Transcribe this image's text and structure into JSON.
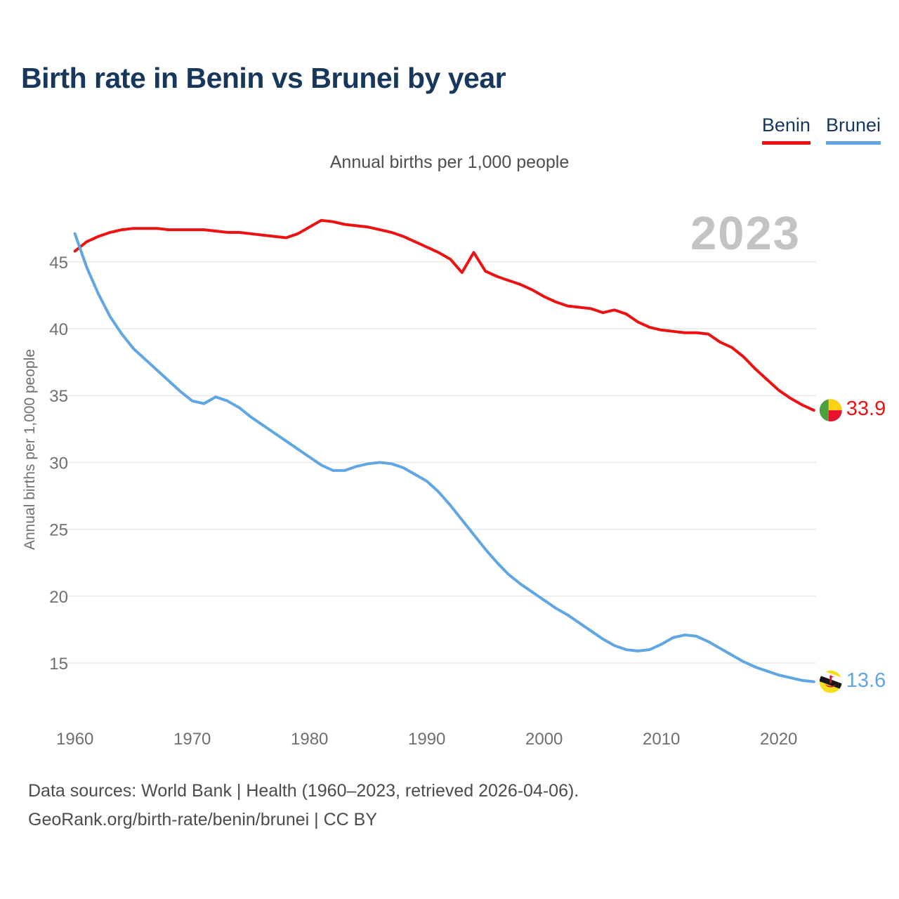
{
  "page": {
    "title": "Birth rate in Benin vs Brunei by year"
  },
  "footer": {
    "line1": "Data sources: World Bank | Health (1960–2023, retrieved 2026-04-06).",
    "line2": "GeoRank.org/birth-rate/benin/brunei | CC BY"
  },
  "chart_data": {
    "type": "line",
    "title": "Birth rate in Benin vs Brunei by year",
    "subtitle": "Annual births per 1,000 people",
    "ylabel": "Annual births per 1,000 people",
    "xlabel": "",
    "watermark": "2023",
    "grid": "horizontal",
    "legend_position": "top-right",
    "x_ticks": [
      1960,
      1970,
      1980,
      1990,
      2000,
      2010,
      2020
    ],
    "y_ticks": [
      45,
      40,
      35,
      30,
      25,
      20,
      15
    ],
    "xlim": [
      1959,
      2024
    ],
    "ylim": [
      10.5,
      49
    ],
    "x": [
      1960,
      1961,
      1962,
      1963,
      1964,
      1965,
      1966,
      1967,
      1968,
      1969,
      1970,
      1971,
      1972,
      1973,
      1974,
      1975,
      1976,
      1977,
      1978,
      1979,
      1980,
      1981,
      1982,
      1983,
      1984,
      1985,
      1986,
      1987,
      1988,
      1989,
      1990,
      1991,
      1992,
      1993,
      1994,
      1995,
      1996,
      1997,
      1998,
      1999,
      2000,
      2001,
      2002,
      2003,
      2004,
      2005,
      2006,
      2007,
      2008,
      2009,
      2010,
      2011,
      2012,
      2013,
      2014,
      2015,
      2016,
      2017,
      2018,
      2019,
      2020,
      2021,
      2022,
      2023
    ],
    "series": [
      {
        "name": "Benin",
        "color": "#ee1111",
        "end_label": "33.9",
        "flag": "benin",
        "values": [
          45.8,
          46.5,
          46.9,
          47.2,
          47.4,
          47.5,
          47.5,
          47.5,
          47.4,
          47.4,
          47.4,
          47.4,
          47.3,
          47.2,
          47.2,
          47.1,
          47.0,
          46.9,
          46.8,
          47.1,
          47.6,
          48.1,
          48.0,
          47.8,
          47.7,
          47.6,
          47.4,
          47.2,
          46.9,
          46.5,
          46.1,
          45.7,
          45.2,
          44.2,
          45.7,
          44.3,
          43.9,
          43.6,
          43.3,
          42.9,
          42.4,
          42.0,
          41.7,
          41.6,
          41.5,
          41.2,
          41.4,
          41.1,
          40.5,
          40.1,
          39.9,
          39.8,
          39.7,
          39.7,
          39.6,
          39.0,
          38.6,
          37.9,
          37.0,
          36.2,
          35.4,
          34.8,
          34.3,
          33.9
        ]
      },
      {
        "name": "Brunei",
        "color": "#60a6e2",
        "end_label": "13.6",
        "flag": "brunei",
        "values": [
          47.1,
          44.6,
          42.6,
          40.9,
          39.6,
          38.5,
          37.7,
          36.9,
          36.1,
          35.3,
          34.6,
          34.4,
          34.9,
          34.6,
          34.1,
          33.4,
          32.8,
          32.2,
          31.6,
          31.0,
          30.4,
          29.8,
          29.4,
          29.4,
          29.7,
          29.9,
          30.0,
          29.9,
          29.6,
          29.1,
          28.6,
          27.8,
          26.8,
          25.7,
          24.6,
          23.5,
          22.5,
          21.6,
          20.9,
          20.3,
          19.7,
          19.1,
          18.6,
          18.0,
          17.4,
          16.8,
          16.3,
          16.0,
          15.9,
          16.0,
          16.4,
          16.9,
          17.1,
          17.0,
          16.6,
          16.1,
          15.6,
          15.1,
          14.7,
          14.4,
          14.1,
          13.9,
          13.7,
          13.6
        ]
      }
    ]
  }
}
